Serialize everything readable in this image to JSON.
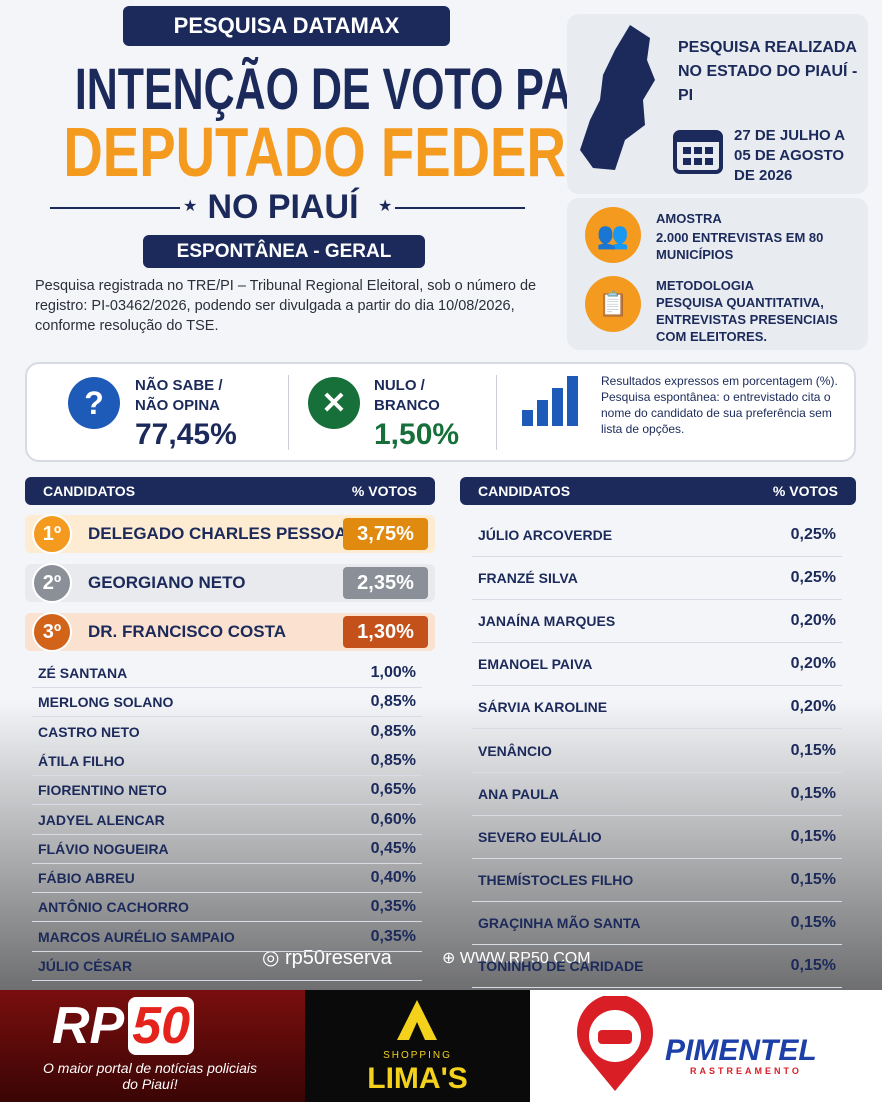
{
  "header": {
    "badge": "PESQUISA DATAMAX",
    "title_line1": "INTENÇÃO DE VOTO PARA",
    "title_line2": "DEPUTADO FEDERAL",
    "title_line3": "NO PIAUÍ",
    "subtitle_badge": "ESPONTÂNEA - GERAL",
    "registration": "Pesquisa registrada no TRE/PI – Tribunal Regional Eleitoral, sob o número de registro: PI-03462/2026, podendo ser divulgada a partir do dia 10/08/2026, conforme resolução do TSE."
  },
  "info": {
    "location": "PESQUISA REALIZADA NO ESTADO DO PIAUÍ - PI",
    "dates": "27 DE JULHO A 05 DE AGOSTO DE 2026",
    "sample_title": "AMOSTRA",
    "sample_text": "2.000 ENTREVISTAS EM 80 MUNICÍPIOS",
    "method_title": "METODOLOGIA",
    "method_text": "PESQUISA QUANTITATIVA, ENTREVISTAS PRESENCIAIS COM ELEITORES."
  },
  "stats": [
    {
      "label": "NÃO SABE / NÃO OPINA",
      "value": "77,45%"
    },
    {
      "label": "NULO / BRANCO",
      "value": "1,50%"
    }
  ],
  "stats_note": "Resultados expressos em porcentagem (%). Pesquisa espontânea: o entrevistado cita o nome do candidato de sua preferência sem lista de opções.",
  "left_table": {
    "headers": [
      "CANDIDATOS",
      "% VOTOS"
    ],
    "top": [
      {
        "rank": "1º",
        "name": "DELEGADO CHARLES PESSOA",
        "value": "3,75%"
      },
      {
        "rank": "2º",
        "name": "GEORGIANO NETO",
        "value": "2,35%"
      },
      {
        "rank": "3º",
        "name": "DR. FRANCISCO COSTA",
        "value": "1,30%"
      }
    ],
    "rows": [
      {
        "name": "ZÉ SANTANA",
        "value": "1,00%"
      },
      {
        "name": "MERLONG SOLANO",
        "value": "0,85%"
      },
      {
        "name": "CASTRO NETO",
        "value": "0,85%"
      },
      {
        "name": "ÁTILA FILHO",
        "value": "0,85%"
      },
      {
        "name": "FIORENTINO NETO",
        "value": "0,65%"
      },
      {
        "name": "JADYEL ALENCAR",
        "value": "0,60%"
      },
      {
        "name": "FLÁVIO NOGUEIRA",
        "value": "0,45%"
      },
      {
        "name": "FÁBIO ABREU",
        "value": "0,40%"
      },
      {
        "name": "ANTÔNIO CACHORRO",
        "value": "0,35%"
      },
      {
        "name": "MARCOS AURÉLIO SAMPAIO",
        "value": "0,35%"
      },
      {
        "name": "JÚLIO CÉSAR"
      }
    ]
  },
  "right_table": {
    "headers": [
      "CANDIDATOS",
      "% VOTOS"
    ],
    "rows": [
      {
        "name": "JÚLIO ARCOVERDE",
        "value": "0,25%"
      },
      {
        "name": "FRANZÉ SILVA",
        "value": "0,25%"
      },
      {
        "name": "JANAÍNA MARQUES",
        "value": "0,20%"
      },
      {
        "name": "EMANOEL PAIVA",
        "value": "0,20%"
      },
      {
        "name": "SÁRVIA KAROLINE",
        "value": "0,20%"
      },
      {
        "name": "VENÂNCIO",
        "value": "0,15%"
      },
      {
        "name": "ANA PAULA",
        "value": "0,15%"
      },
      {
        "name": "SEVERO EULÁLIO",
        "value": "0,15%"
      },
      {
        "name": "THEMÍSTOCLES FILHO",
        "value": "0,15%"
      },
      {
        "name": "GRAÇINHA MÃO SANTA",
        "value": "0,15%"
      },
      {
        "name": "TONINHO DE CARIDADE",
        "value": "0,15%"
      }
    ]
  },
  "watermark": {
    "instagram": "rp50reserva",
    "site": "WWW.RP50.COM"
  },
  "footer": {
    "rp_a": "RP",
    "rp_b": "50",
    "rp_tagline": "O maior portal de notícias policiais do Piauí!",
    "shopping": "SHOPPING",
    "limas": "LIMA'S",
    "pimentel": "PIMENTEL",
    "pimentel_sub": "RASTREAMENTO"
  }
}
